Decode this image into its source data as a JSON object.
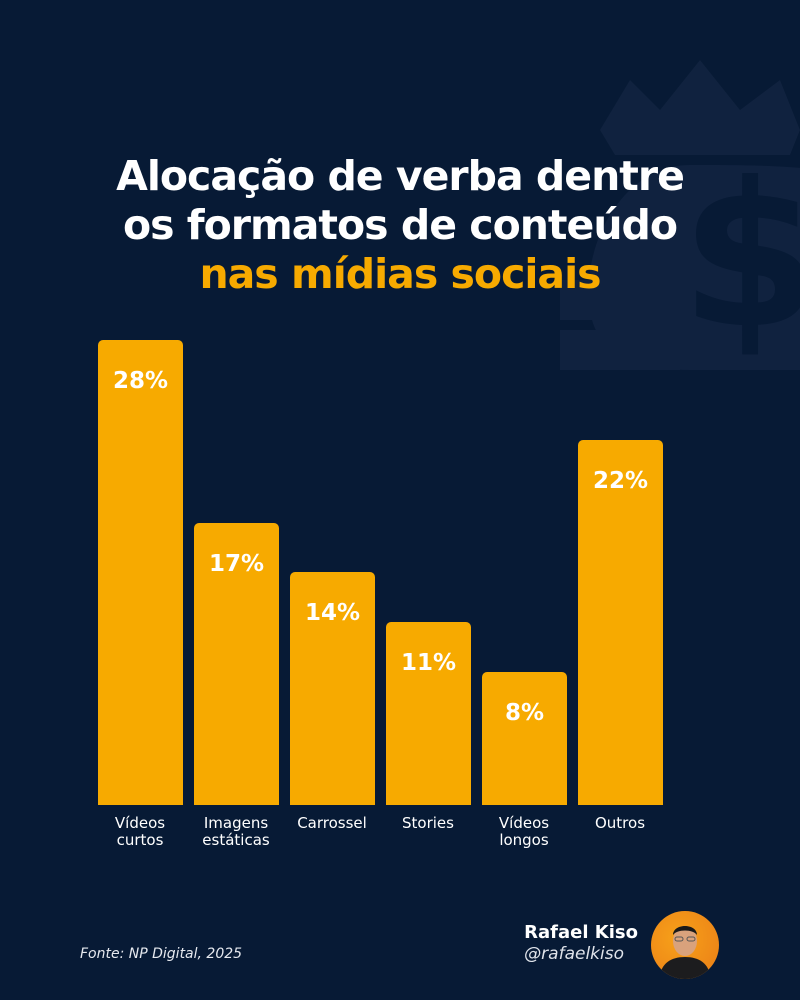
{
  "title": {
    "line1": "Alocação de verba dentre",
    "line2": "os formatos de conteúdo",
    "line3": "nas mídias sociais"
  },
  "colors": {
    "background": "#071a35",
    "accent": "#f7aa00",
    "text": "#ffffff",
    "icon_watermark": "#10223f"
  },
  "background_icon": "money-bag-crown-icon",
  "chart_data": {
    "type": "bar",
    "title": "Alocação de verba dentre os formatos de conteúdo nas mídias sociais",
    "categories": [
      "Vídeos curtos",
      "Imagens estáticas",
      "Carrossel",
      "Stories",
      "Vídeos longos",
      "Outros"
    ],
    "values": [
      28,
      17,
      14,
      11,
      8,
      22
    ],
    "value_labels": [
      "28%",
      "17%",
      "14%",
      "11%",
      "8%",
      "22%"
    ],
    "unit": "%",
    "xlabel": "",
    "ylabel": "",
    "grid": false,
    "legend": "none"
  },
  "categories_display": [
    [
      "Vídeos",
      "curtos"
    ],
    [
      "Imagens",
      "estáticas"
    ],
    [
      "Carrossel",
      ""
    ],
    [
      "Stories",
      ""
    ],
    [
      "Vídeos",
      "longos"
    ],
    [
      "Outros",
      ""
    ]
  ],
  "footer": {
    "source": "Fonte: NP Digital, 2025",
    "author_name": "Rafael Kiso",
    "author_handle": "@rafaelkiso"
  }
}
